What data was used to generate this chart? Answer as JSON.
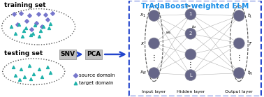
{
  "title": "TrAdaBoost-weighted ELM",
  "title_color": "#1B8FE8",
  "bg_color": "#ffffff",
  "training_set_label": "training set",
  "testing_set_label": "testing set",
  "snv_label": "SNV",
  "pca_label": "PCA",
  "source_domain_label": "source domain",
  "target_domain_label": "target domain",
  "source_color": "#7777CC",
  "target_color": "#20B2AA",
  "input_layer_label": "Input layer",
  "hidden_layer_label": "Hidden layer",
  "output_layer_label": "Output layer",
  "node_color": "#666688",
  "node_edge_color": "#888899",
  "arrow_color": "#2244CC",
  "snv_bg": "#C0C0C0",
  "pca_bg": "#C0C0C0",
  "outer_box_color": "#2244CC",
  "inner_dash_color": "#555555",
  "conn_color": "#AAAAAA",
  "label_fontsize": 6.5,
  "title_fontsize": 7.5
}
